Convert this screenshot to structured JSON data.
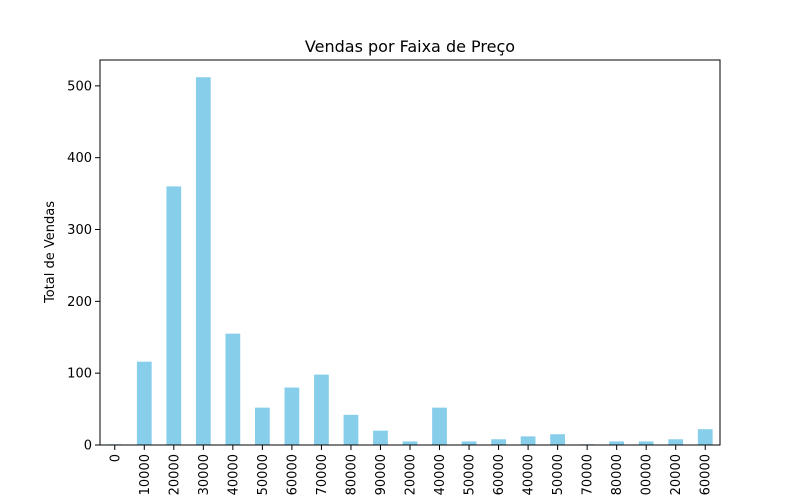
{
  "chart_data": {
    "type": "bar",
    "title": "Vendas por Faixa de Preço",
    "xlabel": "",
    "ylabel": "Total de Vendas",
    "ylim": [
      0,
      536
    ],
    "yticks": [
      0,
      100,
      200,
      300,
      400,
      500
    ],
    "grid": false,
    "bar_color": "#87CEEB",
    "categories": [
      "0",
      "10000",
      "20000",
      "30000",
      "40000",
      "50000",
      "60000",
      "70000",
      "80000",
      "90000",
      "20000",
      "40000",
      "50000",
      "60000",
      "40000",
      "50000",
      "70000",
      "80000",
      "00000",
      "20000",
      "60000"
    ],
    "values": [
      1,
      116,
      360,
      512,
      155,
      52,
      80,
      98,
      42,
      20,
      5,
      52,
      5,
      8,
      12,
      15,
      1,
      5,
      5,
      8,
      22
    ]
  }
}
